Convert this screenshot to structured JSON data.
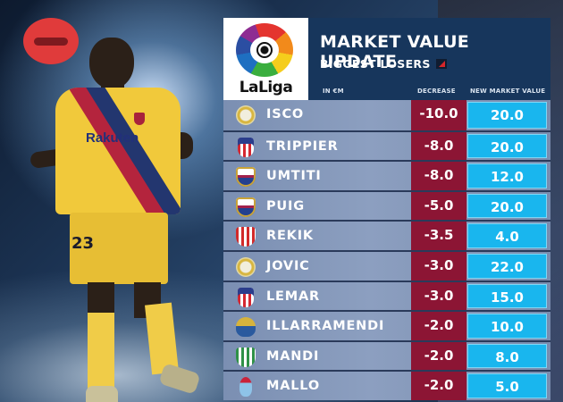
{
  "graphic": {
    "status_icon": "minus-circle-icon",
    "status_color": "#e03b3b"
  },
  "player_photo": {
    "shirt_sponsor": "Rakuten",
    "shirt_number": "23"
  },
  "header": {
    "logo_text": "LaLiga",
    "title": "MARKET VALUE UPDATE",
    "subtitle": "BIGGEST LOSERS",
    "trend_icon": "trend-down-icon",
    "columns": {
      "unit": "IN €M",
      "decrease": "DECREASE",
      "new_value": "NEW MARKET VALUE"
    }
  },
  "colors": {
    "header_bg": "#17365c",
    "decrease_bg": "#8c1534",
    "new_value_bg": "#19b6ee",
    "row_bg": "#8c9fc0"
  },
  "rows": [
    {
      "club": "real-madrid",
      "player": "ISCO",
      "decrease": "-10.0",
      "new_value": "20.0"
    },
    {
      "club": "atletico-madrid",
      "player": "TRIPPIER",
      "decrease": "-8.0",
      "new_value": "20.0"
    },
    {
      "club": "fc-barcelona",
      "player": "UMTITI",
      "decrease": "-8.0",
      "new_value": "12.0"
    },
    {
      "club": "fc-barcelona",
      "player": "PUIG",
      "decrease": "-5.0",
      "new_value": "20.0"
    },
    {
      "club": "sevilla",
      "player": "REKIK",
      "decrease": "-3.5",
      "new_value": "4.0"
    },
    {
      "club": "real-madrid",
      "player": "JOVIC",
      "decrease": "-3.0",
      "new_value": "22.0"
    },
    {
      "club": "atletico-madrid",
      "player": "LEMAR",
      "decrease": "-3.0",
      "new_value": "15.0"
    },
    {
      "club": "real-sociedad",
      "player": "ILLARRAMENDI",
      "decrease": "-2.0",
      "new_value": "10.0"
    },
    {
      "club": "real-betis",
      "player": "MANDI",
      "decrease": "-2.0",
      "new_value": "8.0"
    },
    {
      "club": "celta-vigo",
      "player": "MALLO",
      "decrease": "-2.0",
      "new_value": "5.0"
    }
  ]
}
